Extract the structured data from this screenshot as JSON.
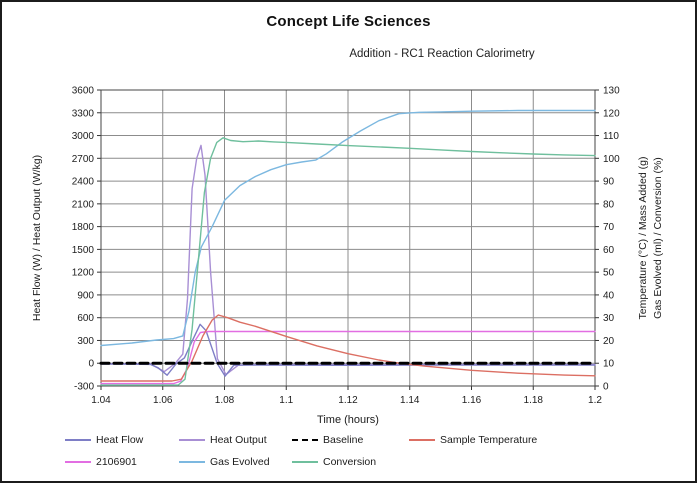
{
  "page": {
    "title": "Concept Life Sciences",
    "subtitle": "Addition - RC1 Reaction Calorimetry"
  },
  "chart_data": {
    "type": "line",
    "title": "Concept Life Sciences",
    "subtitle": "Addition - RC1 Reaction Calorimetry",
    "xlabel": "Time (hours)",
    "ylabel_left": "Heat Flow (W) / Heat Output (W/kg)",
    "ylabel_right_line1": "Temperature (°C) / Mass Added (g)",
    "ylabel_right_line2": "Gas Evolved (ml) / Conversion (%)",
    "x_range": [
      1.04,
      1.2
    ],
    "y_left_range": [
      -300,
      3600
    ],
    "y_right_range": [
      0,
      130
    ],
    "grid": true,
    "grid_color": "#8c8c8c",
    "legend_position": "bottom",
    "x_ticks": [
      {
        "value": 1.04,
        "label": "1.04"
      },
      {
        "value": 1.06,
        "label": "1.06"
      },
      {
        "value": 1.08,
        "label": "1.08"
      },
      {
        "value": 1.1,
        "label": "1.1"
      },
      {
        "value": 1.12,
        "label": "1.12"
      },
      {
        "value": 1.14,
        "label": "1.14"
      },
      {
        "value": 1.16,
        "label": "1.16"
      },
      {
        "value": 1.18,
        "label": "1.18"
      },
      {
        "value": 1.2,
        "label": "1.2"
      }
    ],
    "y_left_ticks": [
      {
        "value": 3600,
        "label": "3600"
      },
      {
        "value": 3300,
        "label": "3300"
      },
      {
        "value": 3000,
        "label": "3000"
      },
      {
        "value": 2700,
        "label": "2700"
      },
      {
        "value": 2400,
        "label": "2400"
      },
      {
        "value": 2100,
        "label": "2100"
      },
      {
        "value": 1800,
        "label": "1800"
      },
      {
        "value": 1500,
        "label": "1500"
      },
      {
        "value": 1200,
        "label": "1200"
      },
      {
        "value": 900,
        "label": "900"
      },
      {
        "value": 600,
        "label": "600"
      },
      {
        "value": 300,
        "label": "300"
      },
      {
        "value": 0,
        "label": "0"
      },
      {
        "value": -300,
        "label": "-300"
      }
    ],
    "y_right_ticks": [
      {
        "value": 130,
        "label": "130"
      },
      {
        "value": 120,
        "label": "120"
      },
      {
        "value": 110,
        "label": "110"
      },
      {
        "value": 100,
        "label": "100"
      },
      {
        "value": 90,
        "label": "90"
      },
      {
        "value": 80,
        "label": "80"
      },
      {
        "value": 70,
        "label": "70"
      },
      {
        "value": 60,
        "label": "60"
      },
      {
        "value": 50,
        "label": "50"
      },
      {
        "value": 40,
        "label": "40"
      },
      {
        "value": 30,
        "label": "30"
      },
      {
        "value": 20,
        "label": "20"
      },
      {
        "value": 10,
        "label": "10"
      },
      {
        "value": 0,
        "label": "0"
      }
    ],
    "series": [
      {
        "name": "Heat Output",
        "axis": "left",
        "color": "#a88fd4",
        "dash": null,
        "points": [
          [
            1.04,
            -8
          ],
          [
            1.056,
            -8
          ],
          [
            1.0605,
            -110
          ],
          [
            1.064,
            -5
          ],
          [
            1.0665,
            120
          ],
          [
            1.068,
            850
          ],
          [
            1.0695,
            2300
          ],
          [
            1.071,
            2700
          ],
          [
            1.0724,
            2870
          ],
          [
            1.0737,
            2480
          ],
          [
            1.0755,
            1200
          ],
          [
            1.0777,
            60
          ],
          [
            1.0805,
            -150
          ],
          [
            1.0845,
            -25
          ],
          [
            1.09,
            -18
          ],
          [
            1.2,
            -18
          ]
        ]
      },
      {
        "name": "Heat Flow",
        "axis": "left",
        "color": "#7e7ec6",
        "dash": null,
        "points": [
          [
            1.04,
            -12
          ],
          [
            1.05,
            -13
          ],
          [
            1.056,
            -15
          ],
          [
            1.0585,
            -60
          ],
          [
            1.0614,
            -158
          ],
          [
            1.0643,
            -10
          ],
          [
            1.067,
            70
          ],
          [
            1.0695,
            290
          ],
          [
            1.0721,
            513
          ],
          [
            1.074,
            430
          ],
          [
            1.0776,
            0
          ],
          [
            1.0802,
            -170
          ],
          [
            1.083,
            -26
          ],
          [
            1.09,
            -24
          ],
          [
            1.12,
            -27
          ],
          [
            1.15,
            -24
          ],
          [
            1.2,
            -24
          ]
        ]
      },
      {
        "name": "2106901",
        "axis": "left",
        "color": "#e26ee2",
        "dash": null,
        "points": [
          [
            1.04,
            -268
          ],
          [
            1.0635,
            -268
          ],
          [
            1.0658,
            -235
          ],
          [
            1.068,
            -60
          ],
          [
            1.0702,
            280
          ],
          [
            1.0722,
            405
          ],
          [
            1.0748,
            418
          ],
          [
            1.12,
            418
          ],
          [
            1.2,
            418
          ]
        ]
      },
      {
        "name": "Sample Temperature",
        "axis": "right",
        "color": "#dc6f63",
        "dash": null,
        "points": [
          [
            1.04,
            2.2
          ],
          [
            1.063,
            2.2
          ],
          [
            1.066,
            3
          ],
          [
            1.0695,
            11
          ],
          [
            1.073,
            22
          ],
          [
            1.076,
            29
          ],
          [
            1.078,
            31.2
          ],
          [
            1.081,
            30
          ],
          [
            1.085,
            28
          ],
          [
            1.09,
            26.2
          ],
          [
            1.1,
            21.8
          ],
          [
            1.11,
            17.6
          ],
          [
            1.12,
            14.2
          ],
          [
            1.13,
            11.4
          ],
          [
            1.135,
            10.3
          ],
          [
            1.145,
            8.7
          ],
          [
            1.16,
            6.9
          ],
          [
            1.175,
            5.6
          ],
          [
            1.19,
            4.8
          ],
          [
            1.2,
            4.5
          ]
        ]
      },
      {
        "name": "Gas Evolved",
        "axis": "right",
        "color": "#7cb8e0",
        "dash": null,
        "points": [
          [
            1.04,
            17.8
          ],
          [
            1.05,
            18.9
          ],
          [
            1.058,
            20.2
          ],
          [
            1.0635,
            20.8
          ],
          [
            1.0665,
            22
          ],
          [
            1.0685,
            33
          ],
          [
            1.0705,
            50
          ],
          [
            1.0725,
            61
          ],
          [
            1.076,
            70
          ],
          [
            1.08,
            81.5
          ],
          [
            1.085,
            88
          ],
          [
            1.09,
            92
          ],
          [
            1.095,
            95
          ],
          [
            1.1,
            97.2
          ],
          [
            1.105,
            98.4
          ],
          [
            1.1095,
            99.2
          ],
          [
            1.113,
            102
          ],
          [
            1.118,
            107
          ],
          [
            1.124,
            112
          ],
          [
            1.13,
            116.5
          ],
          [
            1.1365,
            119.6
          ],
          [
            1.143,
            120.2
          ],
          [
            1.15,
            120.4
          ],
          [
            1.16,
            120.7
          ],
          [
            1.175,
            121
          ],
          [
            1.2,
            121
          ]
        ]
      },
      {
        "name": "Conversion",
        "axis": "right",
        "color": "#6fbf9d",
        "dash": null,
        "points": [
          [
            1.04,
            0.4
          ],
          [
            1.065,
            0.4
          ],
          [
            1.0672,
            3
          ],
          [
            1.0695,
            25
          ],
          [
            1.0715,
            55
          ],
          [
            1.0735,
            85
          ],
          [
            1.0755,
            100
          ],
          [
            1.0775,
            107
          ],
          [
            1.0795,
            109
          ],
          [
            1.082,
            107.8
          ],
          [
            1.086,
            107.3
          ],
          [
            1.091,
            107.6
          ],
          [
            1.096,
            107.2
          ],
          [
            1.1,
            107
          ],
          [
            1.11,
            106.3
          ],
          [
            1.12,
            105.6
          ],
          [
            1.13,
            105
          ],
          [
            1.14,
            104.4
          ],
          [
            1.15,
            103.7
          ],
          [
            1.16,
            103
          ],
          [
            1.17,
            102.4
          ],
          [
            1.18,
            101.9
          ],
          [
            1.19,
            101.5
          ],
          [
            1.2,
            101.2
          ]
        ]
      },
      {
        "name": "Baseline",
        "axis": "left",
        "color": "#000000",
        "dash": "8,5",
        "points": [
          [
            1.04,
            0
          ],
          [
            1.2,
            0
          ]
        ]
      }
    ],
    "legend_rows": [
      [
        "Heat Flow",
        "Heat Output",
        "Baseline",
        "Sample Temperature"
      ],
      [
        "2106901",
        "Gas Evolved",
        "Conversion"
      ]
    ]
  }
}
